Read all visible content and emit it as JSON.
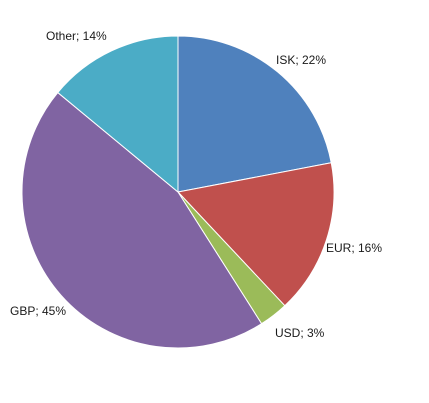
{
  "chart_data": {
    "type": "pie",
    "title": "",
    "legend": "none",
    "start": "12 o'clock, clockwise",
    "slices": [
      {
        "label": "ISK; 22%",
        "category": "ISK",
        "value": 22,
        "color": "#4f81bd"
      },
      {
        "label": "EUR; 16%",
        "category": "EUR",
        "value": 16,
        "color": "#c0504d"
      },
      {
        "label": "USD; 3%",
        "category": "USD",
        "value": 3,
        "color": "#9bbb59"
      },
      {
        "label": "GBP; 45%",
        "category": "GBP",
        "value": 45,
        "color": "#8064a2"
      },
      {
        "label": "Other; 14%",
        "category": "Other",
        "value": 14,
        "color": "#4bacc6"
      }
    ]
  }
}
